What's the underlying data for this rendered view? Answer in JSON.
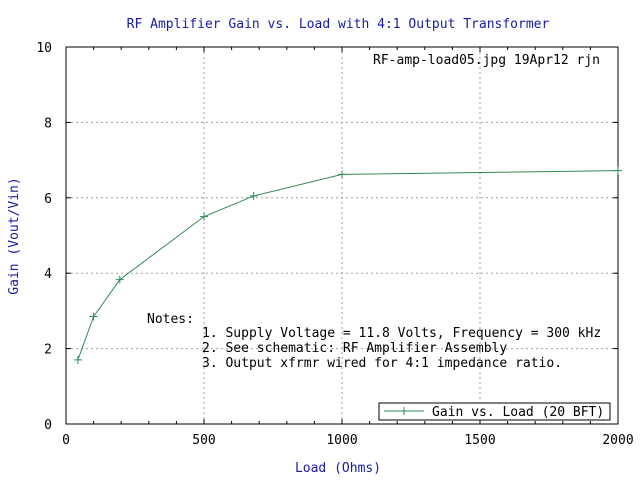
{
  "chart_data": {
    "type": "line",
    "title": "RF Amplifier Gain vs. Load with 4:1 Output Transformer",
    "xlabel": "Load (Ohms)",
    "ylabel": "Gain (Vout/Vin)",
    "xlim": [
      0,
      2000
    ],
    "ylim": [
      0,
      10
    ],
    "x_ticks": [
      0,
      500,
      1000,
      1500,
      2000
    ],
    "y_ticks": [
      0,
      2,
      4,
      6,
      8,
      10
    ],
    "grid": true,
    "legend_position": "bottom-right",
    "stamp": "RF-amp-load05.jpg 19Apr12 rjn",
    "notes": {
      "heading": "Notes:",
      "lines": [
        "1. Supply Voltage = 11.8 Volts, Frequency = 300 kHz",
        "2. See schematic: RF Amplifier Assembly",
        "3. Output xfrmr wired for 4:1 impedance ratio."
      ]
    },
    "series": [
      {
        "name": "Gain vs. Load (20 BFT)",
        "color": "#2e8b57",
        "marker": "plus",
        "x": [
          43,
          100,
          195,
          500,
          680,
          1000,
          2000
        ],
        "y": [
          1.7,
          2.85,
          3.83,
          5.5,
          6.05,
          6.62,
          6.72
        ]
      }
    ]
  },
  "colors": {
    "title": "#1a1aa6",
    "grid": "#a0a0a0",
    "frame": "#000000"
  }
}
